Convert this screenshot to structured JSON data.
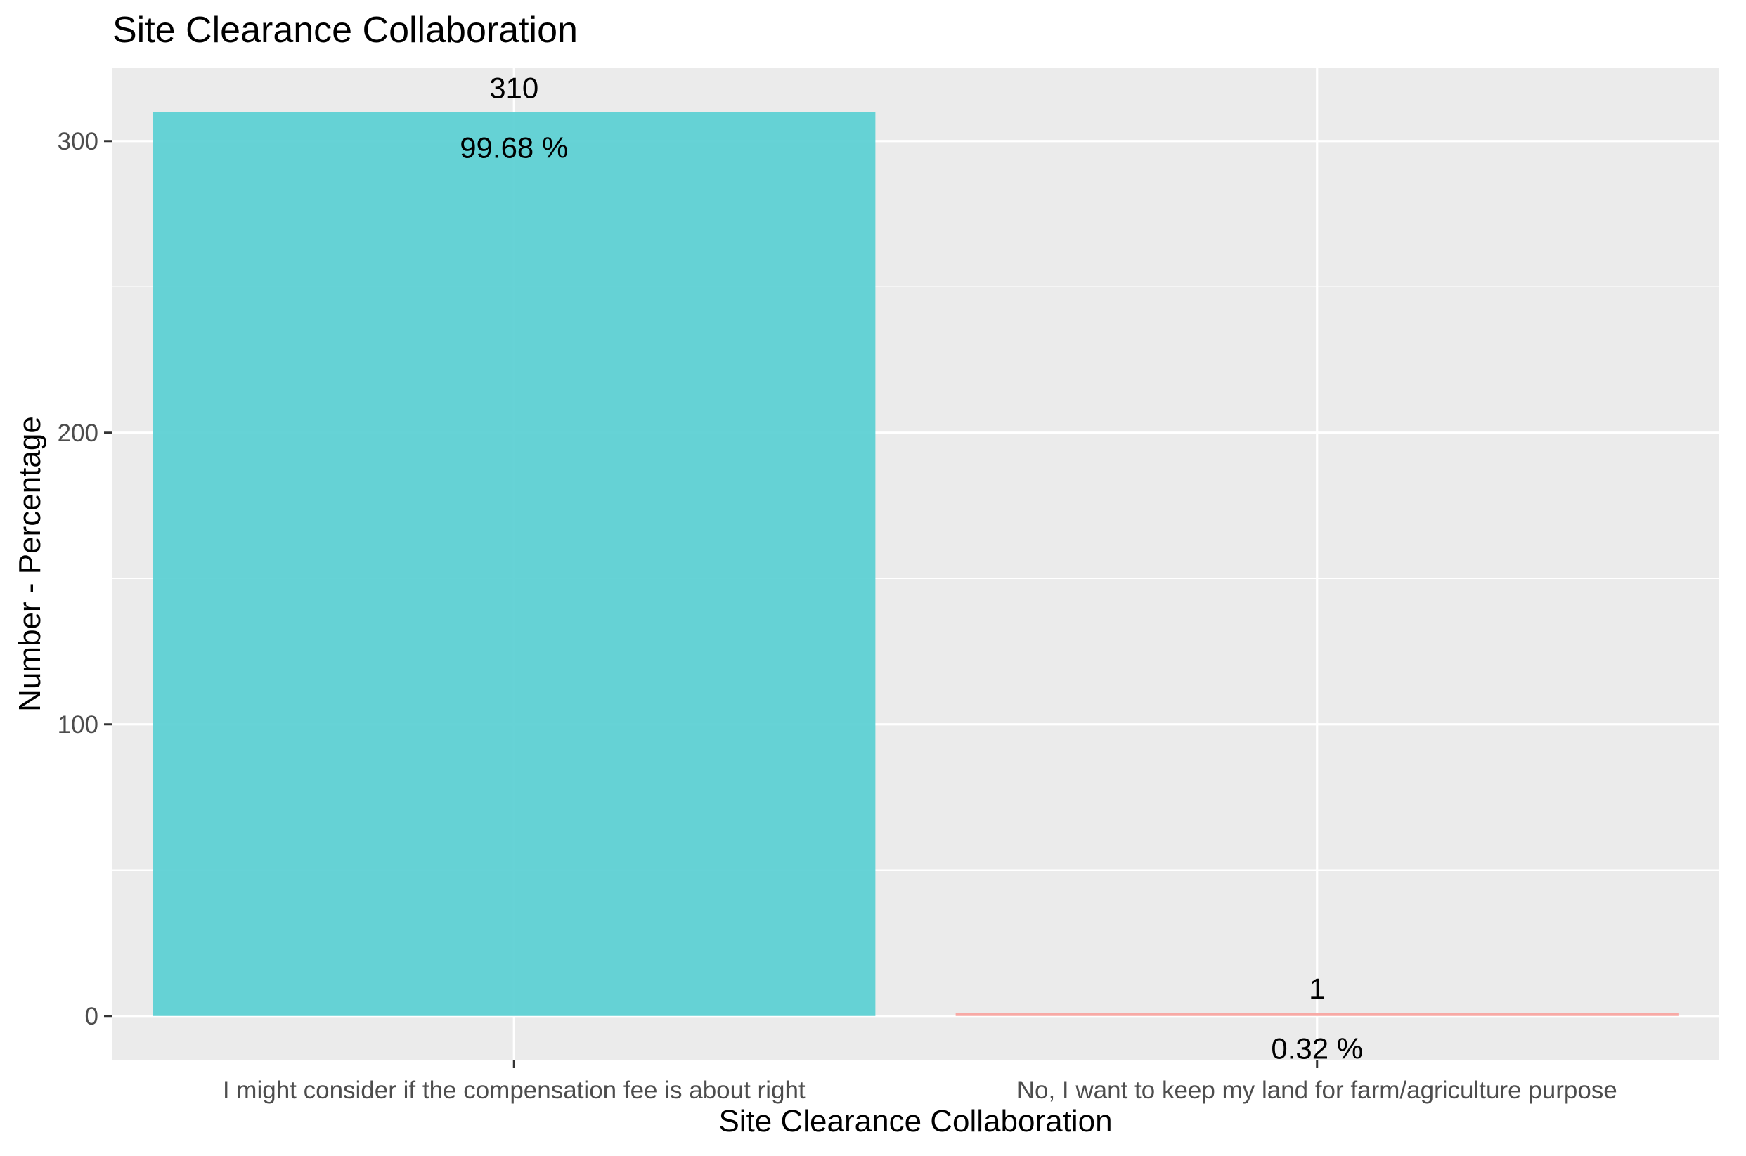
{
  "chart_data": {
    "type": "bar",
    "title": "Site Clearance Collaboration",
    "xlabel": "Site Clearance Collaboration",
    "ylabel": "Number - Percentage",
    "ylim": [
      -15,
      325
    ],
    "y_ticks": [
      0,
      100,
      200,
      300
    ],
    "grid": true,
    "categories": [
      "I might consider if the compensation fee is about right",
      "No, I want to keep my land for farm/agriculture purpose"
    ],
    "values": [
      310,
      1
    ],
    "percent_labels": [
      "99.68 %",
      "0.32 %"
    ],
    "colors": [
      "#5ED1D4",
      "#F8A5A1"
    ],
    "panel_background": "#EBEBEB",
    "grid_color": "#FFFFFF",
    "text_color": "#000000",
    "tick_text_color": "#4D4D4D"
  }
}
